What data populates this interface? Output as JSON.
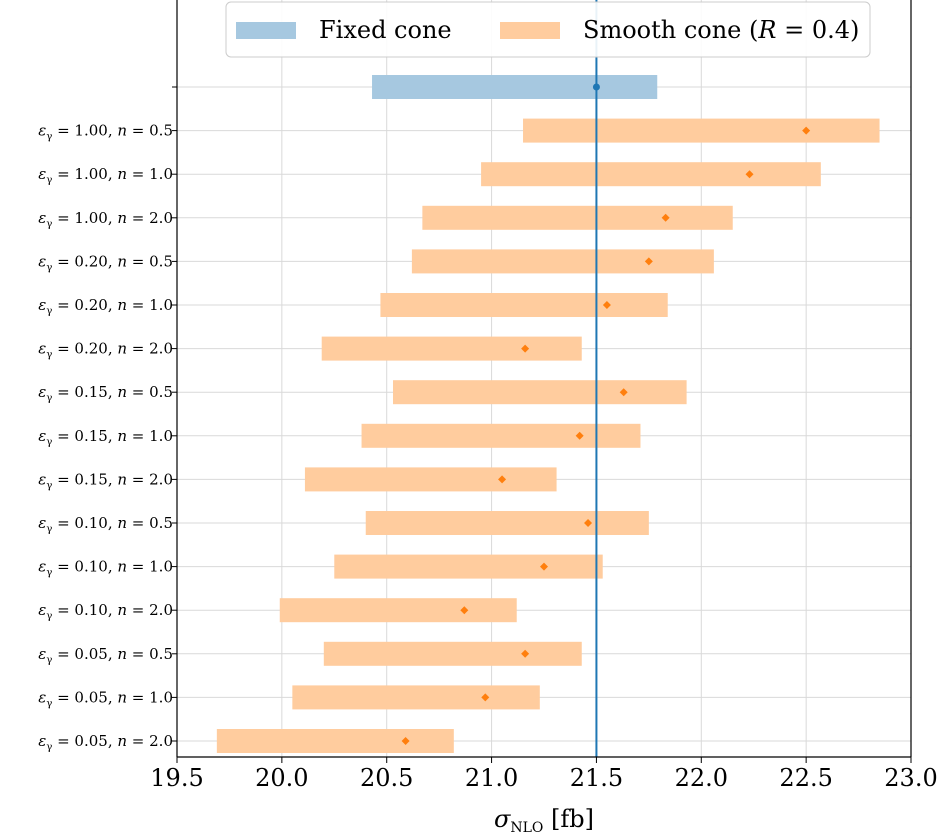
{
  "chart_data": {
    "type": "interval",
    "xlabel": "σ",
    "xlabel_subscript": "NLO",
    "xlabel_unit": "[fb]",
    "xlim": [
      19.5,
      23.0
    ],
    "xticks": [
      "19.5",
      "20.0",
      "20.5",
      "21.0",
      "21.5",
      "22.0",
      "22.5",
      "23.0"
    ],
    "grid": true,
    "legend_placement": "top-center",
    "reference_line": 21.5,
    "colors": {
      "fixed_band": "#a6c8e0",
      "fixed_point": "#1f77b4",
      "smooth_band": "#ffcc9e",
      "smooth_point": "#ff7f0e",
      "reference_line": "#1f77b4",
      "grid": "#d9d9d9"
    },
    "series": [
      {
        "name": "Fixed cone",
        "rows": [
          {
            "label": "",
            "value": 21.5,
            "low": 20.43,
            "high": 21.79
          }
        ]
      },
      {
        "name": "Smooth cone (R = 0.4)",
        "legend_prefix": "Smooth cone (",
        "legend_math": "R",
        "legend_suffix": " = 0.4)",
        "rows": [
          {
            "label": "ε",
            "sub": "γ",
            "rest": " = 1.00, ",
            "n": "n",
            "nval": " = 0.5",
            "value": 22.5,
            "low": 21.15,
            "high": 22.85
          },
          {
            "label": "ε",
            "sub": "γ",
            "rest": " = 1.00, ",
            "n": "n",
            "nval": " = 1.0",
            "value": 22.23,
            "low": 20.95,
            "high": 22.57
          },
          {
            "label": "ε",
            "sub": "γ",
            "rest": " = 1.00, ",
            "n": "n",
            "nval": " = 2.0",
            "value": 21.83,
            "low": 20.67,
            "high": 22.15
          },
          {
            "label": "ε",
            "sub": "γ",
            "rest": " = 0.20, ",
            "n": "n",
            "nval": " = 0.5",
            "value": 21.75,
            "low": 20.62,
            "high": 22.06
          },
          {
            "label": "ε",
            "sub": "γ",
            "rest": " = 0.20, ",
            "n": "n",
            "nval": " = 1.0",
            "value": 21.55,
            "low": 20.47,
            "high": 21.84
          },
          {
            "label": "ε",
            "sub": "γ",
            "rest": " = 0.20, ",
            "n": "n",
            "nval": " = 2.0",
            "value": 21.16,
            "low": 20.19,
            "high": 21.43
          },
          {
            "label": "ε",
            "sub": "γ",
            "rest": " = 0.15, ",
            "n": "n",
            "nval": " = 0.5",
            "value": 21.63,
            "low": 20.53,
            "high": 21.93
          },
          {
            "label": "ε",
            "sub": "γ",
            "rest": " = 0.15, ",
            "n": "n",
            "nval": " = 1.0",
            "value": 21.42,
            "low": 20.38,
            "high": 21.71
          },
          {
            "label": "ε",
            "sub": "γ",
            "rest": " = 0.15, ",
            "n": "n",
            "nval": " = 2.0",
            "value": 21.05,
            "low": 20.11,
            "high": 21.31
          },
          {
            "label": "ε",
            "sub": "γ",
            "rest": " = 0.10, ",
            "n": "n",
            "nval": " = 0.5",
            "value": 21.46,
            "low": 20.4,
            "high": 21.75
          },
          {
            "label": "ε",
            "sub": "γ",
            "rest": " = 0.10, ",
            "n": "n",
            "nval": " = 1.0",
            "value": 21.25,
            "low": 20.25,
            "high": 21.53
          },
          {
            "label": "ε",
            "sub": "γ",
            "rest": " = 0.10, ",
            "n": "n",
            "nval": " = 2.0",
            "value": 20.87,
            "low": 19.99,
            "high": 21.12
          },
          {
            "label": "ε",
            "sub": "γ",
            "rest": " = 0.05, ",
            "n": "n",
            "nval": " = 0.5",
            "value": 21.16,
            "low": 20.2,
            "high": 21.43
          },
          {
            "label": "ε",
            "sub": "γ",
            "rest": " = 0.05, ",
            "n": "n",
            "nval": " = 1.0",
            "value": 20.97,
            "low": 20.05,
            "high": 21.23
          },
          {
            "label": "ε",
            "sub": "γ",
            "rest": " = 0.05, ",
            "n": "n",
            "nval": " = 2.0",
            "value": 20.59,
            "low": 19.69,
            "high": 20.82
          }
        ]
      }
    ]
  }
}
